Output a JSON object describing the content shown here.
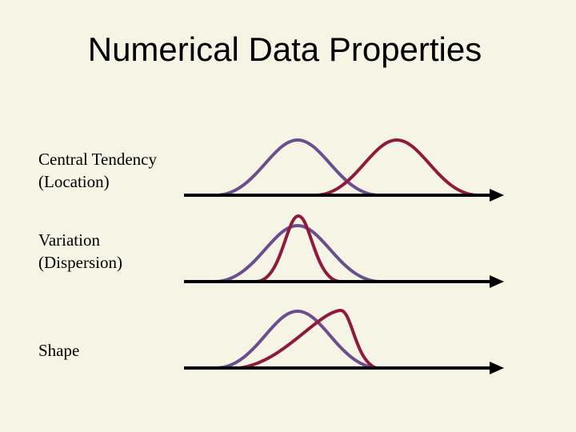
{
  "slide": {
    "title": "Numerical Data Properties",
    "background": "#f6f4e4",
    "colors": {
      "purple": "#6b4e8e",
      "crimson": "#8e1a3e",
      "axis": "#000000"
    }
  },
  "rows": [
    {
      "label_line1": "Central Tendency",
      "label_line2": "(Location)"
    },
    {
      "label_line1": "Variation",
      "label_line2": "(Dispersion)"
    },
    {
      "label_line1": "Shape",
      "label_line2": ""
    }
  ]
}
